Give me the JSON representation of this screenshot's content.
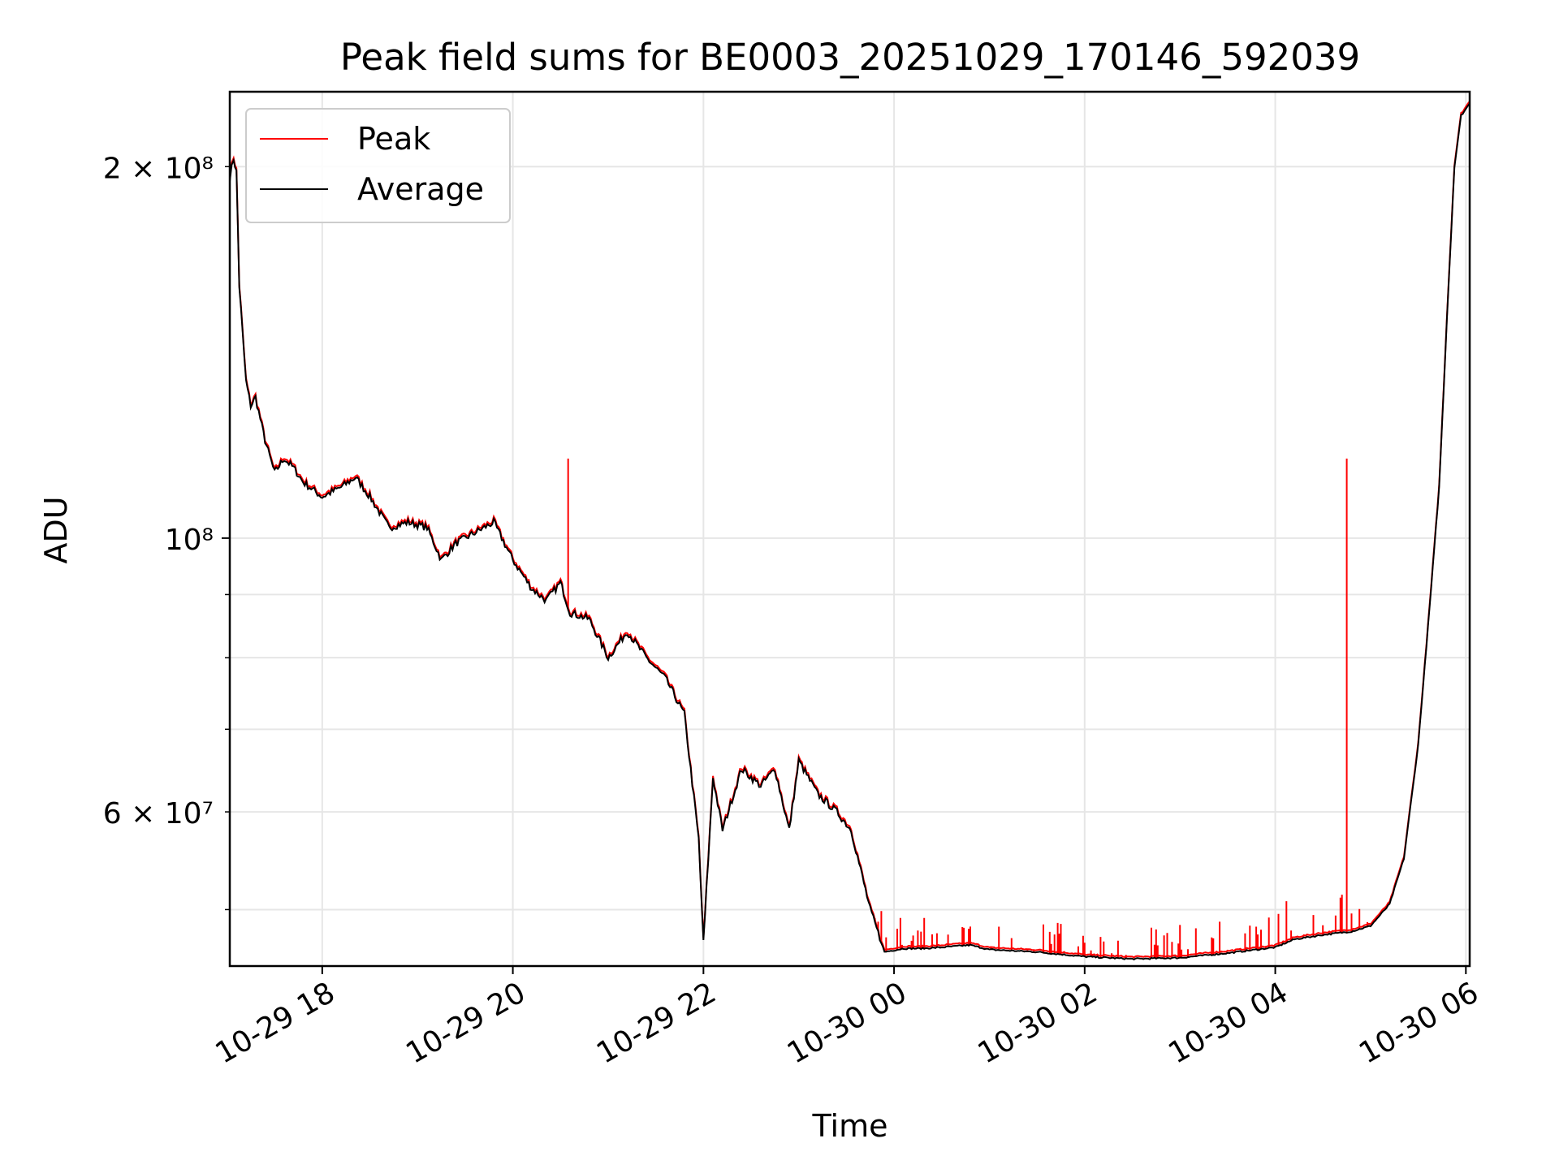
{
  "chart_data": {
    "type": "line",
    "title": "Peak field sums for BE0003_20251029_170146_592039",
    "xlabel": "Time",
    "ylabel": "ADU",
    "yscale": "log",
    "ylim": [
      45000000,
      230000000
    ],
    "xlim_hours": [
      17.03,
      30.04
    ],
    "grid": true,
    "legend_position": "top-left",
    "colors": {
      "peak": "#ff0000",
      "average": "#000000",
      "grid": "#e6e6e6",
      "axes": "#000000"
    },
    "x_ticks": [
      {
        "label": "10-29 18",
        "hour": 18
      },
      {
        "label": "10-29 20",
        "hour": 20
      },
      {
        "label": "10-29 22",
        "hour": 22
      },
      {
        "label": "10-30 00",
        "hour": 24
      },
      {
        "label": "10-30 02",
        "hour": 26
      },
      {
        "label": "10-30 04",
        "hour": 28
      },
      {
        "label": "10-30 06",
        "hour": 30
      }
    ],
    "y_major_ticks": [
      {
        "label": "10⁸",
        "value": 100000000
      }
    ],
    "y_minor_ticks": [
      {
        "label": "2 × 10⁸",
        "value": 200000000,
        "labeled": true
      },
      {
        "label": "6 × 10⁷",
        "value": 60000000,
        "labeled": true
      },
      {
        "label": "",
        "value": 50000000,
        "labeled": false
      },
      {
        "label": "",
        "value": 70000000,
        "labeled": false
      },
      {
        "label": "",
        "value": 80000000,
        "labeled": false
      },
      {
        "label": "",
        "value": 90000000,
        "labeled": false
      }
    ],
    "series": [
      {
        "name": "Peak",
        "color": "#ff0000",
        "spikes": [
          {
            "hour": 20.58,
            "value": 116000000
          },
          {
            "hour": 28.75,
            "value": 116000000
          }
        ],
        "noise_band": {
          "from_hour": 23.8,
          "to_hour": 29.0,
          "max_excess": 3000000
        }
      },
      {
        "name": "Average",
        "color": "#000000",
        "points": [
          [
            17.03,
            196000000
          ],
          [
            17.07,
            203000000
          ],
          [
            17.1,
            198000000
          ],
          [
            17.13,
            160000000
          ],
          [
            17.2,
            134000000
          ],
          [
            17.25,
            128000000
          ],
          [
            17.3,
            130000000
          ],
          [
            17.4,
            120000000
          ],
          [
            17.5,
            113000000
          ],
          [
            17.6,
            116000000
          ],
          [
            17.7,
            114000000
          ],
          [
            17.8,
            111000000
          ],
          [
            18.0,
            108000000
          ],
          [
            18.2,
            110000000
          ],
          [
            18.35,
            112000000
          ],
          [
            18.5,
            108000000
          ],
          [
            18.7,
            102000000
          ],
          [
            18.9,
            103000000
          ],
          [
            19.1,
            102000000
          ],
          [
            19.25,
            96000000
          ],
          [
            19.4,
            99000000
          ],
          [
            19.6,
            101000000
          ],
          [
            19.8,
            103000000
          ],
          [
            20.0,
            96000000
          ],
          [
            20.2,
            91000000
          ],
          [
            20.35,
            89000000
          ],
          [
            20.5,
            92000000
          ],
          [
            20.6,
            87000000
          ],
          [
            20.8,
            86000000
          ],
          [
            21.0,
            80000000
          ],
          [
            21.2,
            84000000
          ],
          [
            21.4,
            80000000
          ],
          [
            21.6,
            77000000
          ],
          [
            21.8,
            72000000
          ],
          [
            21.95,
            57000000
          ],
          [
            22.0,
            47000000
          ],
          [
            22.1,
            64000000
          ],
          [
            22.2,
            58000000
          ],
          [
            22.4,
            65000000
          ],
          [
            22.6,
            63000000
          ],
          [
            22.75,
            65000000
          ],
          [
            22.9,
            58000000
          ],
          [
            23.0,
            66000000
          ],
          [
            23.2,
            62000000
          ],
          [
            23.4,
            60000000
          ],
          [
            23.55,
            58000000
          ],
          [
            23.75,
            50000000
          ],
          [
            23.9,
            46200000
          ],
          [
            24.1,
            46500000
          ],
          [
            24.3,
            46500000
          ],
          [
            24.5,
            46600000
          ],
          [
            24.8,
            46800000
          ],
          [
            25.0,
            46400000
          ],
          [
            25.5,
            46200000
          ],
          [
            26.0,
            45800000
          ],
          [
            26.5,
            45600000
          ],
          [
            27.0,
            45700000
          ],
          [
            27.5,
            46100000
          ],
          [
            28.0,
            46600000
          ],
          [
            28.2,
            47300000
          ],
          [
            28.5,
            47700000
          ],
          [
            28.8,
            48000000
          ],
          [
            29.0,
            48500000
          ],
          [
            29.2,
            50500000
          ],
          [
            29.35,
            55000000
          ],
          [
            29.5,
            68000000
          ],
          [
            29.62,
            88000000
          ],
          [
            29.72,
            110000000
          ],
          [
            29.8,
            150000000
          ],
          [
            29.88,
            200000000
          ],
          [
            29.95,
            220000000
          ],
          [
            30.04,
            225000000
          ]
        ]
      }
    ]
  }
}
